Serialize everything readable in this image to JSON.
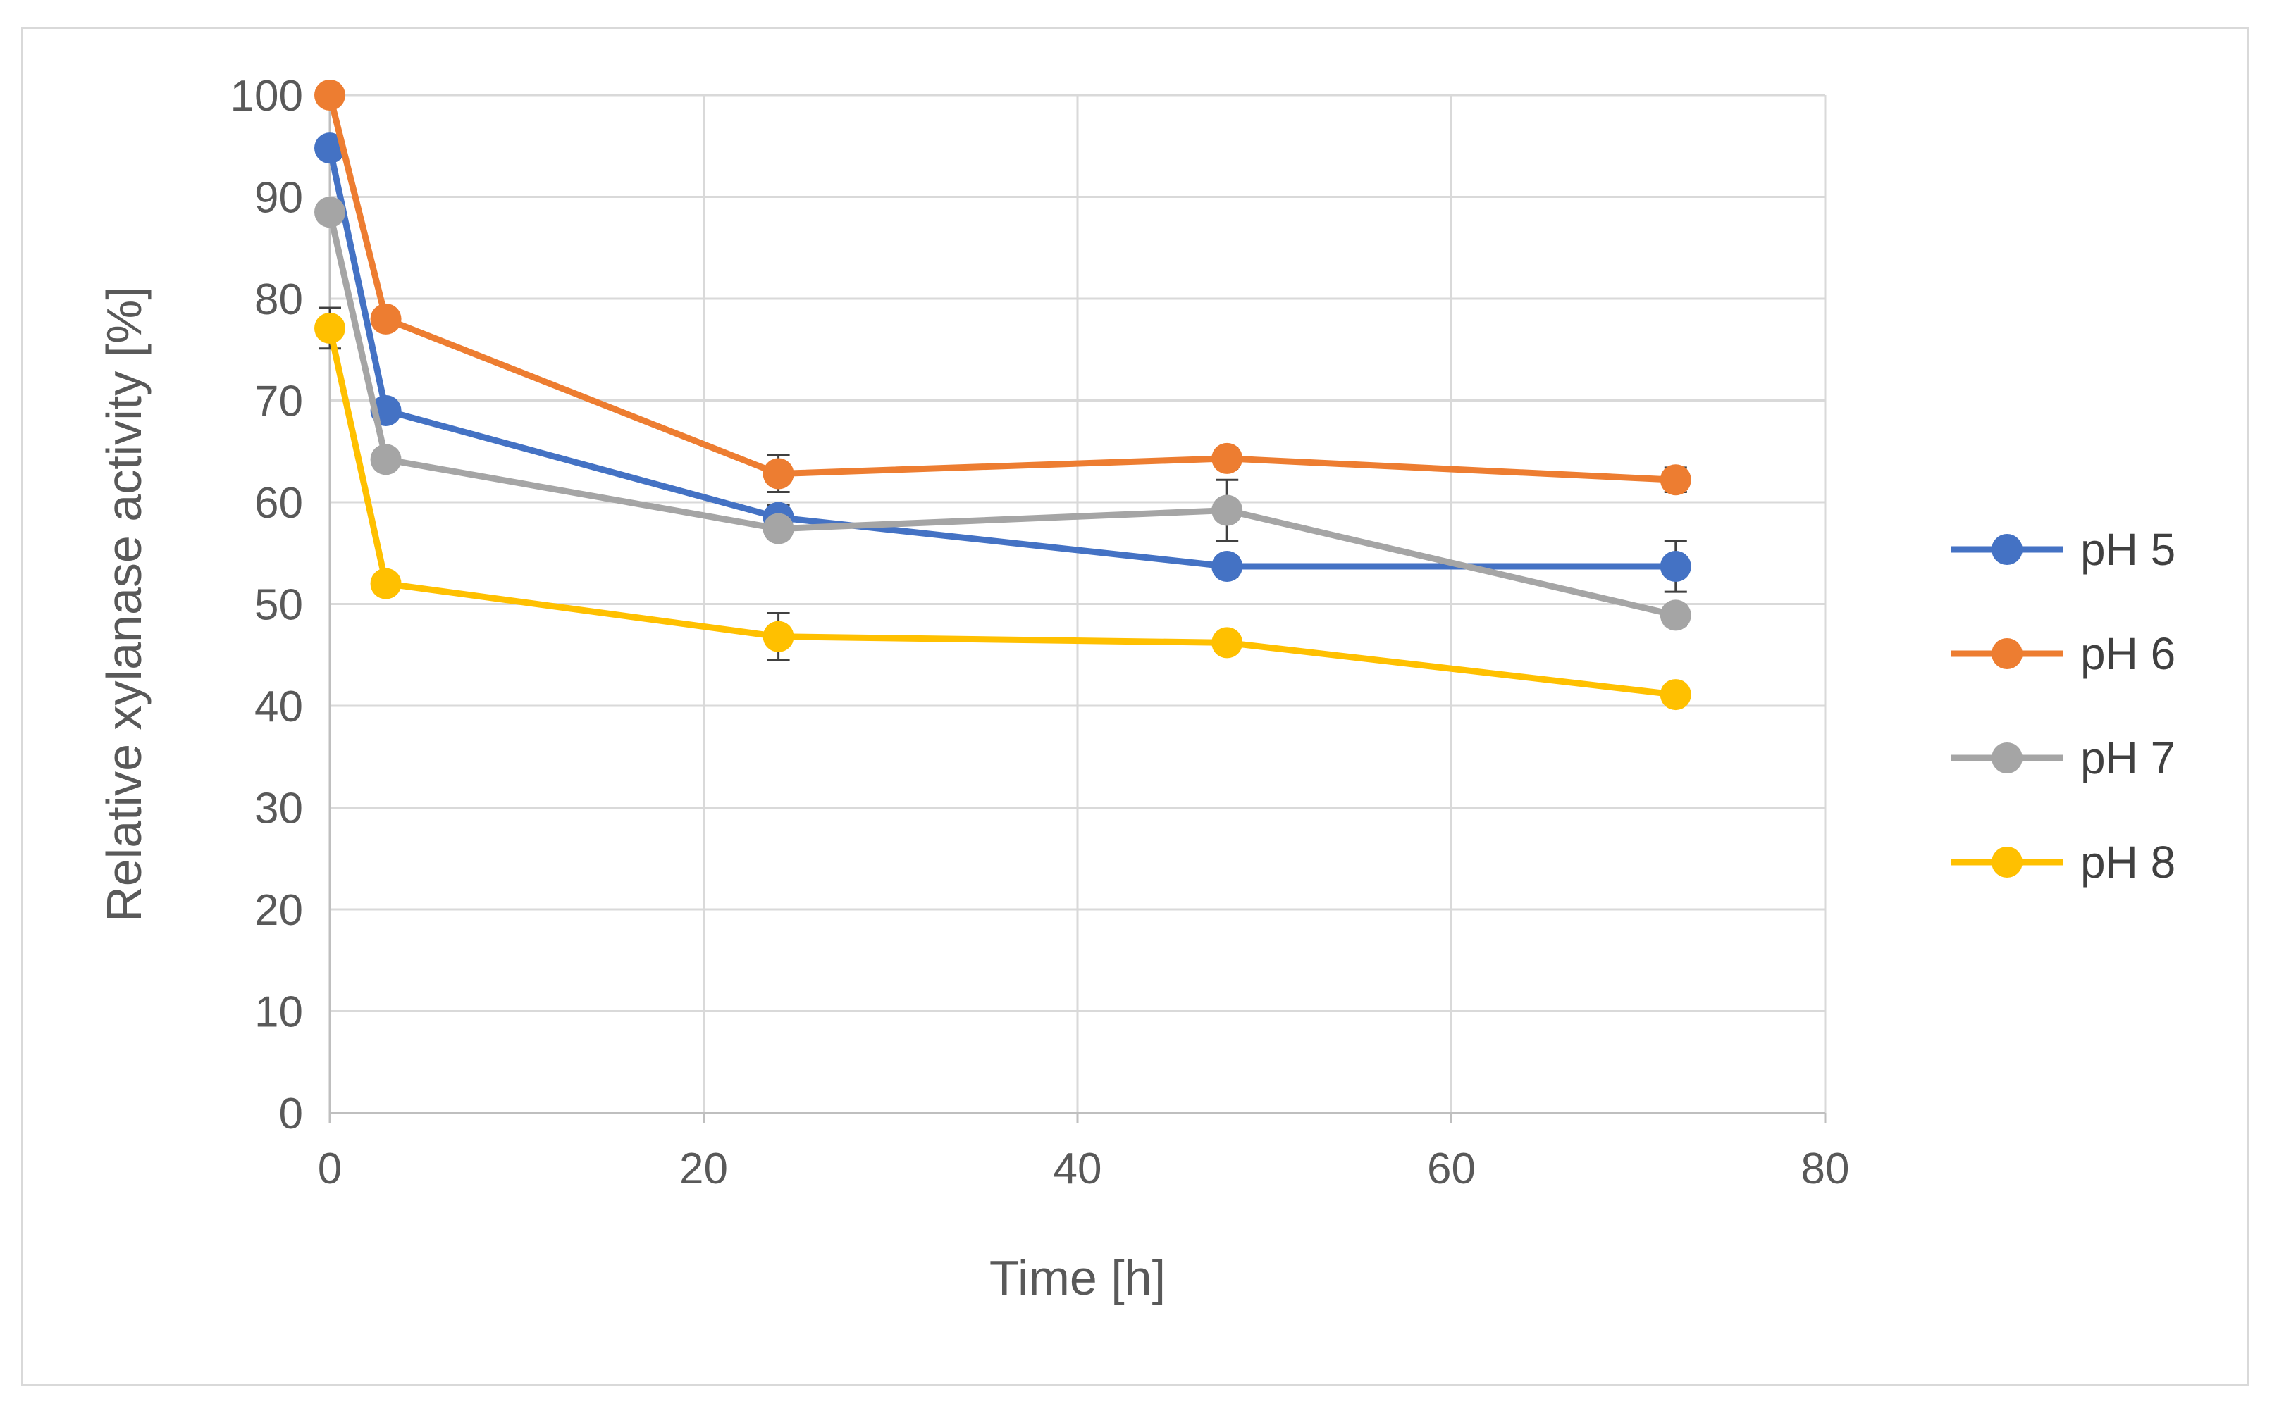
{
  "chart_data": {
    "type": "line",
    "title": "",
    "xlabel": "Time [h]",
    "ylabel": "Relative xylanase activity [%]",
    "xlim": [
      0,
      80
    ],
    "ylim": [
      0,
      100
    ],
    "x_ticks": [
      "0",
      "20",
      "40",
      "60",
      "80"
    ],
    "y_ticks": [
      "0",
      "10",
      "20",
      "30",
      "40",
      "50",
      "60",
      "70",
      "80",
      "90",
      "100"
    ],
    "grid": true,
    "legend_position": "right",
    "x": [
      0,
      3,
      24,
      48,
      72
    ],
    "series": [
      {
        "name": "pH 5",
        "color": "#4472c4",
        "values": [
          94.8,
          69.0,
          58.5,
          53.7,
          53.7
        ],
        "errors": [
          1.0,
          0.8,
          1.2,
          1.0,
          2.5
        ]
      },
      {
        "name": "pH 6",
        "color": "#ed7d31",
        "values": [
          100.0,
          78.0,
          62.8,
          64.3,
          62.2
        ],
        "errors": [
          0.5,
          0.8,
          1.8,
          1.0,
          1.2
        ]
      },
      {
        "name": "pH 7",
        "color": "#a5a5a5",
        "values": [
          88.5,
          64.2,
          57.4,
          59.2,
          48.9
        ],
        "errors": [
          1.0,
          0.8,
          1.0,
          3.0,
          1.0
        ]
      },
      {
        "name": "pH 8",
        "color": "#ffc000",
        "values": [
          77.1,
          52.0,
          46.8,
          46.2,
          41.1
        ],
        "errors": [
          2.0,
          0.8,
          2.3,
          0.8,
          0.8
        ]
      }
    ]
  }
}
